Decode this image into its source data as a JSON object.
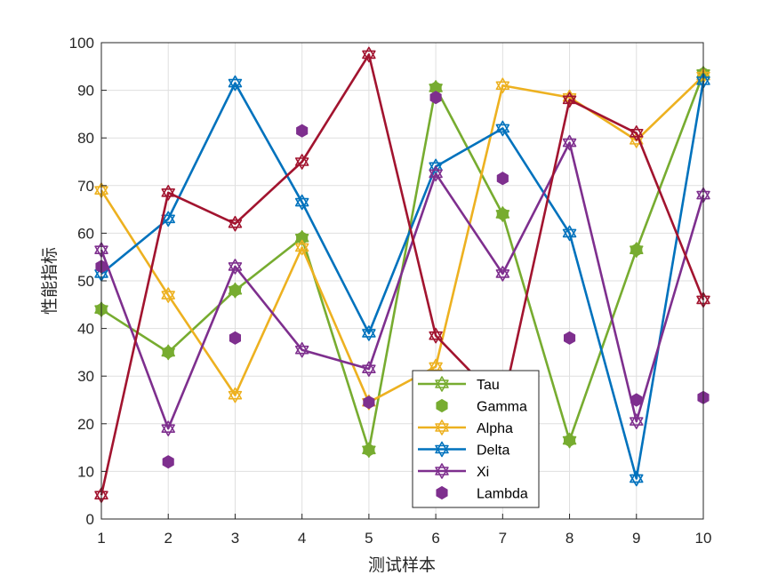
{
  "chart_data": {
    "type": "line",
    "xlabel": "测试样本",
    "ylabel": "性能指标",
    "xlim": [
      1,
      10
    ],
    "ylim": [
      0,
      100
    ],
    "xticks": [
      "1",
      "2",
      "3",
      "4",
      "5",
      "6",
      "7",
      "8",
      "9",
      "10"
    ],
    "yticks": [
      "0",
      "10",
      "20",
      "30",
      "40",
      "50",
      "60",
      "70",
      "80",
      "90",
      "100"
    ],
    "grid": true,
    "legend_position": "bottom-center",
    "x": [
      1,
      2,
      3,
      4,
      5,
      6,
      7,
      8,
      9,
      10
    ],
    "series": [
      {
        "name": "Tau",
        "color": "#77AC30",
        "style": "line",
        "marker": "hexagram",
        "values": [
          44,
          35,
          48,
          59,
          14.5,
          90.5,
          64,
          16.5,
          56.5,
          93.5
        ]
      },
      {
        "name": "Gamma",
        "color": "#77AC30",
        "style": "markers",
        "marker": "circle",
        "values": [
          44,
          35,
          48,
          59,
          14.5,
          90.5,
          64,
          16.5,
          56.5,
          93.5
        ]
      },
      {
        "name": "Alpha",
        "color": "#EDB120",
        "style": "line",
        "marker": "hexagram",
        "values": [
          69,
          47,
          26,
          57,
          24.5,
          32,
          91,
          88.5,
          79.5,
          93
        ]
      },
      {
        "name": "Delta",
        "color": "#0072BD",
        "style": "line",
        "marker": "hexagram",
        "values": [
          51.5,
          63,
          91.5,
          66.5,
          39,
          74,
          82,
          60,
          8.5,
          92
        ]
      },
      {
        "name": "Xi",
        "color": "#7E2F8E",
        "style": "line",
        "marker": "hexagram",
        "values": [
          56.5,
          19,
          53,
          35.5,
          31.5,
          72.5,
          51.5,
          79,
          20.5,
          68
        ]
      },
      {
        "name": "Lambda",
        "color": "#7E2F8E",
        "style": "markers",
        "marker": "circle",
        "values": [
          53,
          12,
          38,
          81.5,
          24.5,
          88.5,
          71.5,
          38,
          25,
          25.5
        ]
      },
      {
        "name": "",
        "color": "#A2142F",
        "style": "line",
        "marker": "hexagram",
        "values": [
          5,
          68.5,
          62,
          75,
          97.5,
          38.5,
          24,
          88,
          81,
          46
        ]
      }
    ]
  }
}
